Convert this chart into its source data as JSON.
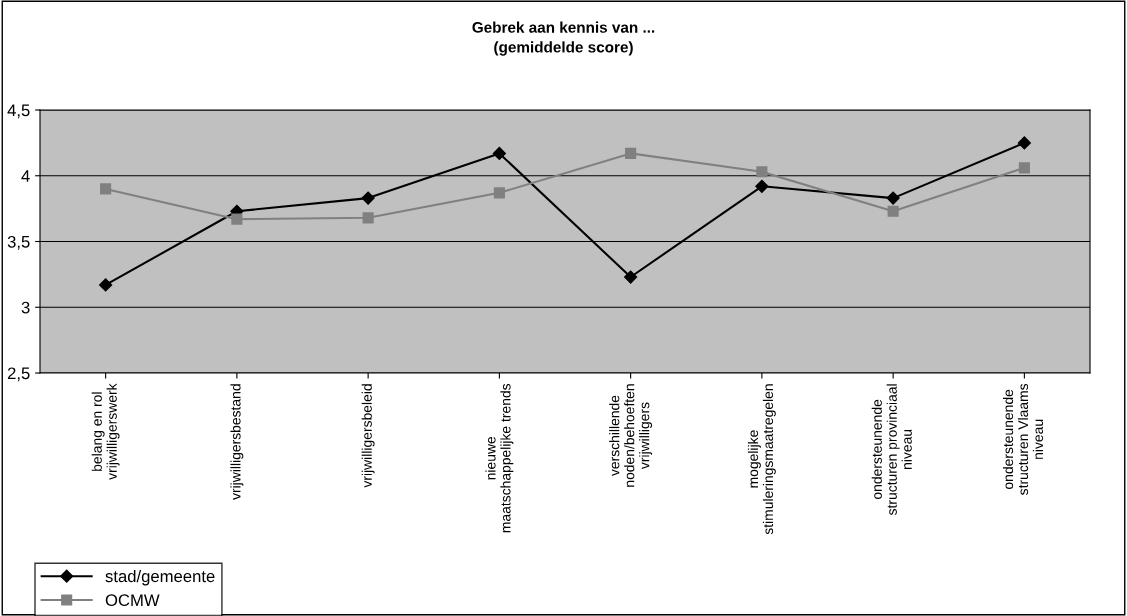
{
  "chart_data": {
    "type": "line",
    "title": "Gebrek aan kennis van ...\n(gemiddelde score)",
    "categories": [
      "belang en rol\nvrijwilligerswerk",
      "vrijwilligersbestand",
      "vrijwilligersbeleid",
      "nieuwe\nmaatschappelijke trends",
      "verschillende\nnoden/behoeften\nvrijwilligers",
      "mogelijke\nstimuleringsmaatregelen",
      "ondersteunende\nstructuren provinciaal\nniveau",
      "ondersteunende\nstructuren Vlaams\nniveau"
    ],
    "series": [
      {
        "name": "stad/gemeente",
        "color": "#000000",
        "marker": "diamond",
        "values": [
          3.17,
          3.73,
          3.83,
          4.17,
          3.23,
          3.92,
          3.83,
          4.25
        ]
      },
      {
        "name": "OCMW",
        "color": "#808080",
        "marker": "square",
        "values": [
          3.9,
          3.67,
          3.68,
          3.87,
          4.17,
          4.03,
          3.73,
          4.06
        ]
      }
    ],
    "ylim": [
      2.5,
      4.5
    ],
    "yticks": [
      {
        "value": 2.5,
        "label": "2,5"
      },
      3,
      {
        "value": 3.5,
        "label": "3,5"
      },
      4,
      {
        "value": 4.5,
        "label": "4,5"
      }
    ],
    "grid": "y",
    "legend": "bottom left",
    "line_style": "solid"
  }
}
